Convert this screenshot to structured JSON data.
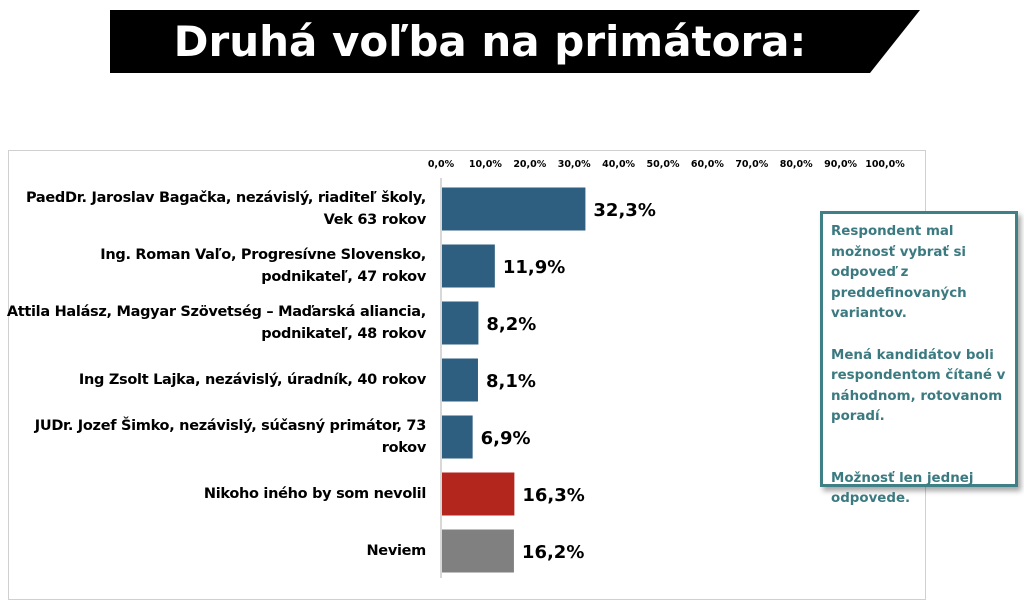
{
  "header": {
    "title": "Druhá voľba na primátora:"
  },
  "note": {
    "paragraph_1": "Respondent mal možnosť vybrať si odpoveď z preddefinovaných variantov.",
    "paragraph_2": "Mená kandidátov boli respondentom čítané v náhodnom, rotovanom poradí.",
    "paragraph_3": "Možnosť len jednej odpovede."
  },
  "chart_data": {
    "type": "bar",
    "orientation": "horizontal",
    "title": "",
    "xlabel": "",
    "ylabel": "",
    "xlim": [
      0,
      100
    ],
    "grid": false,
    "legend": "none",
    "tick_labels": [
      "0,0%",
      "10,0%",
      "20,0%",
      "30,0%",
      "40,0%",
      "50,0%",
      "60,0%",
      "70,0%",
      "80,0%",
      "90,0%",
      "100,0%"
    ],
    "categories": [
      "PaedDr. Jaroslav Bagačka, nezávislý, riaditeľ školy, Vek 63 rokov",
      "Ing. Roman Vaľo, Progresívne Slovensko, podnikateľ, 47 rokov",
      "Attila Halász, Magyar Szövetség – Maďarská aliancia, podnikateľ, 48 rokov",
      "Ing Zsolt Lajka, nezávislý, úradník, 40 rokov",
      "JUDr. Jozef Šimko, nezávislý, súčasný primátor, 73 rokov",
      "Nikoho iného by som nevolil",
      "Neviem"
    ],
    "values": [
      32.3,
      11.9,
      8.2,
      8.1,
      6.9,
      16.3,
      16.2
    ],
    "value_labels": [
      "32,3%",
      "11,9%",
      "8,2%",
      "8,1%",
      "6,9%",
      "16,3%",
      "16,2%"
    ],
    "colors": [
      "#2e5f80",
      "#2e5f80",
      "#2e5f80",
      "#2e5f80",
      "#2e5f80",
      "#b3261e",
      "#808080"
    ]
  },
  "colors": {
    "banner": "#000000",
    "candidate_bar": "#2e5f80",
    "none_bar": "#b3261e",
    "dont_know_bar": "#808080",
    "note_border": "#3f7f86",
    "note_text": "#3b7a80"
  }
}
